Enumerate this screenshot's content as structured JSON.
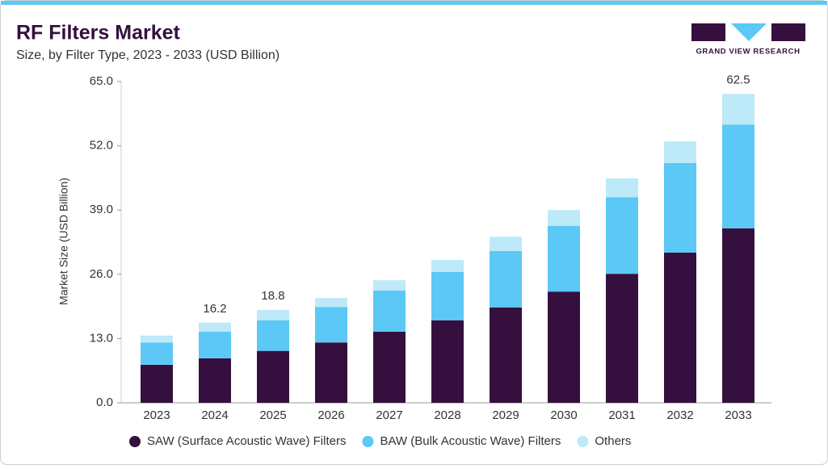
{
  "chart_data": {
    "type": "stacked_bar",
    "title": "RF Filters Market",
    "subtitle": "Size, by Filter Type, 2023 - 2033 (USD Billion)",
    "y_label": "Market Size (USD Billion)",
    "logo_text": "GRAND VIEW RESEARCH",
    "categories": [
      "2023",
      "2024",
      "2025",
      "2026",
      "2027",
      "2028",
      "2029",
      "2030",
      "2031",
      "2032",
      "2033"
    ],
    "series": [
      {
        "name": "SAW (Surface Acoustic Wave) Filters",
        "color": "#35103f",
        "values": [
          7.7,
          9.0,
          10.5,
          12.2,
          14.4,
          16.7,
          19.3,
          22.5,
          26.1,
          30.4,
          35.3
        ]
      },
      {
        "name": "BAW (Bulk Acoustic Wave) Filters",
        "color": "#5bc8f5",
        "values": [
          4.5,
          5.4,
          6.2,
          7.2,
          8.3,
          9.8,
          11.4,
          13.3,
          15.5,
          18.1,
          21.0
        ]
      },
      {
        "name": "Others",
        "color": "#bde9f8",
        "values": [
          1.4,
          1.8,
          2.1,
          1.8,
          2.1,
          2.4,
          2.9,
          3.2,
          3.8,
          4.4,
          6.2
        ]
      }
    ],
    "totals": [
      null,
      16.2,
      18.8,
      null,
      null,
      null,
      null,
      null,
      null,
      null,
      62.5
    ],
    "ylim": [
      0,
      65
    ],
    "yticks": [
      {
        "value": 0,
        "label": "0.0"
      },
      {
        "value": 13,
        "label": "13.0"
      },
      {
        "value": 26,
        "label": "26.0"
      },
      {
        "value": 39,
        "label": "39.0"
      },
      {
        "value": 52,
        "label": "52.0"
      },
      {
        "value": 65,
        "label": "65.0"
      }
    ],
    "grid": false,
    "legend": "bottom"
  }
}
